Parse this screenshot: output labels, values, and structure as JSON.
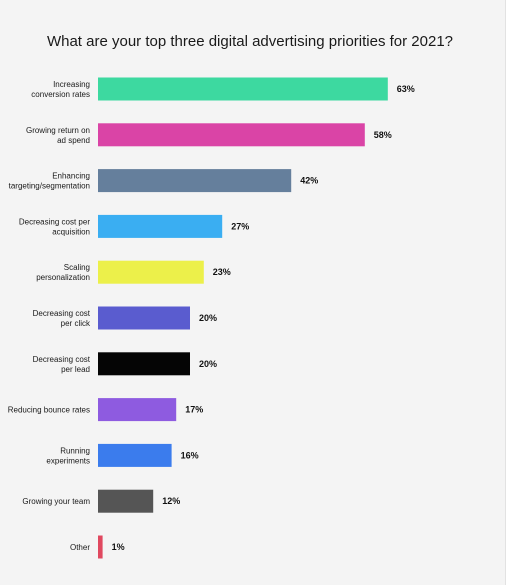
{
  "chart_data": {
    "type": "bar",
    "orientation": "horizontal",
    "title": "What are your top three digital advertising priorities for 2021?",
    "categories": [
      "Increasing\nconversion rates",
      "Growing return on\nad spend",
      "Enhancing\ntargeting/segmentation",
      "Decreasing cost per\nacquisition",
      "Scaling\npersonalization",
      "Decreasing cost\nper click",
      "Decreasing cost\nper lead",
      "Reducing bounce rates",
      "Running\nexperiments",
      "Growing your team",
      "Other"
    ],
    "values": [
      63,
      58,
      42,
      27,
      23,
      20,
      20,
      17,
      16,
      12,
      1
    ],
    "value_labels": [
      "63%",
      "58%",
      "42%",
      "27%",
      "23%",
      "20%",
      "20%",
      "17%",
      "16%",
      "12%",
      "1%"
    ],
    "colors": [
      "#3dd9a0",
      "#da44a6",
      "#657f9c",
      "#3aaef2",
      "#ecf04a",
      "#5a5ccf",
      "#050505",
      "#8e5be0",
      "#3b7ced",
      "#555555",
      "#e0485f"
    ],
    "xlim": [
      0,
      100
    ],
    "grid": false,
    "legend": "none"
  }
}
